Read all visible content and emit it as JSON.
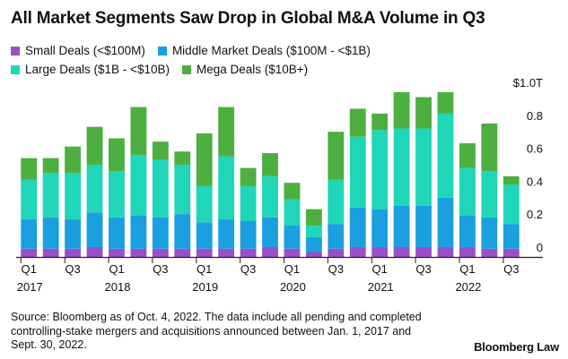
{
  "title": "All Market Segments Saw Drop in Global M&A Volume in Q3",
  "source": "Source: Bloomberg as of Oct. 4, 2022. The data include all pending and completed controlling-stake mergers and acquisitions announced between Jan. 1, 2017 and Sept. 30, 2022.",
  "brand": "Bloomberg Law",
  "colors": {
    "small": "#9a4fc9",
    "middle": "#1a9fe0",
    "large": "#1fd6b8",
    "mega": "#4caf3f",
    "axis": "#222222"
  },
  "chart_data": {
    "type": "bar",
    "stacked": true,
    "title": "All Market Segments Saw Drop in Global M&A Volume in Q3",
    "categories": [
      "Q1 2017",
      "Q2 2017",
      "Q3 2017",
      "Q4 2017",
      "Q1 2018",
      "Q2 2018",
      "Q3 2018",
      "Q4 2018",
      "Q1 2019",
      "Q2 2019",
      "Q3 2019",
      "Q4 2019",
      "Q1 2020",
      "Q2 2020",
      "Q3 2020",
      "Q4 2020",
      "Q1 2021",
      "Q2 2021",
      "Q3 2021",
      "Q4 2021",
      "Q1 2022",
      "Q2 2022",
      "Q3 2022"
    ],
    "x_tick_labels": [
      {
        "q": "Q1",
        "year": "2017"
      },
      {
        "q": "Q3",
        "year": ""
      },
      {
        "q": "Q1",
        "year": "2018"
      },
      {
        "q": "Q3",
        "year": ""
      },
      {
        "q": "Q1",
        "year": "2019"
      },
      {
        "q": "Q3",
        "year": ""
      },
      {
        "q": "Q1",
        "year": "2020"
      },
      {
        "q": "Q3",
        "year": ""
      },
      {
        "q": "Q1",
        "year": "2021"
      },
      {
        "q": "Q3",
        "year": ""
      },
      {
        "q": "Q1",
        "year": "2022"
      },
      {
        "q": "Q3",
        "year": ""
      }
    ],
    "x_tick_category_index": [
      0,
      2,
      4,
      6,
      8,
      10,
      12,
      14,
      16,
      18,
      20,
      22
    ],
    "series": [
      {
        "key": "small",
        "name": "Small Deals (<$100M)",
        "values": [
          0.05,
          0.05,
          0.05,
          0.06,
          0.05,
          0.05,
          0.05,
          0.05,
          0.05,
          0.05,
          0.05,
          0.06,
          0.05,
          0.03,
          0.05,
          0.06,
          0.06,
          0.06,
          0.06,
          0.06,
          0.06,
          0.05,
          0.05
        ]
      },
      {
        "key": "middle",
        "name": "Middle Market Deals ($100M - <$1B)",
        "values": [
          0.18,
          0.19,
          0.18,
          0.21,
          0.19,
          0.2,
          0.19,
          0.21,
          0.16,
          0.18,
          0.17,
          0.18,
          0.14,
          0.09,
          0.15,
          0.24,
          0.23,
          0.25,
          0.25,
          0.3,
          0.19,
          0.19,
          0.15
        ]
      },
      {
        "key": "large",
        "name": "Large Deals ($1B - <$10B)",
        "values": [
          0.24,
          0.27,
          0.28,
          0.29,
          0.28,
          0.37,
          0.35,
          0.3,
          0.22,
          0.38,
          0.21,
          0.25,
          0.16,
          0.07,
          0.27,
          0.43,
          0.48,
          0.47,
          0.47,
          0.51,
          0.29,
          0.28,
          0.24
        ]
      },
      {
        "key": "mega",
        "name": "Mega Deals ($10B+)",
        "values": [
          0.13,
          0.09,
          0.16,
          0.23,
          0.2,
          0.29,
          0.11,
          0.08,
          0.32,
          0.3,
          0.11,
          0.14,
          0.1,
          0.1,
          0.29,
          0.17,
          0.1,
          0.22,
          0.19,
          0.13,
          0.15,
          0.29,
          0.05
        ]
      }
    ],
    "ylim": [
      0,
      1.0
    ],
    "y_ticks": [
      {
        "value": 0,
        "label": "0"
      },
      {
        "value": 0.2,
        "label": "0.2"
      },
      {
        "value": 0.4,
        "label": "0.4"
      },
      {
        "value": 0.6,
        "label": "0.6"
      },
      {
        "value": 0.8,
        "label": "0.8"
      },
      {
        "value": 1.0,
        "label": "$1.0T"
      }
    ],
    "y_axis_side": "right",
    "grid": false,
    "legend_position": "top-left"
  }
}
